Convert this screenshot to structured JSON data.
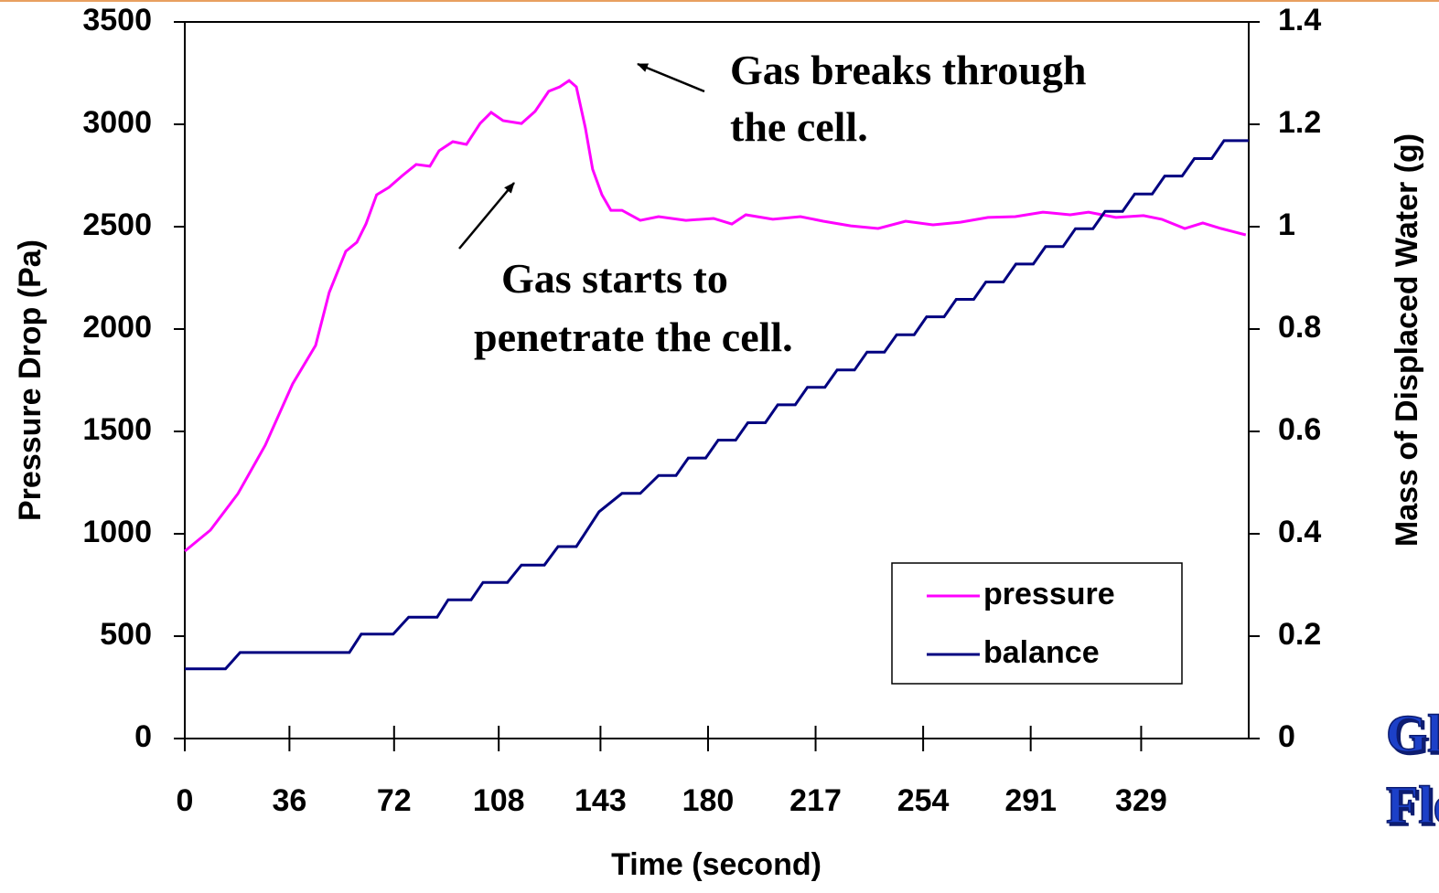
{
  "chart_data": {
    "type": "line",
    "y_label": "Pressure Drop (Pa)",
    "y2_label": "Mass of Displaced Water (g)",
    "x_label": "Time (second)",
    "annotations": [
      "Gas breaks through",
      "the cell.",
      "Gas starts to",
      "penetrate the cell."
    ],
    "corner_text": [
      "Gla",
      "Flo"
    ],
    "xlim": [
      0,
      366
    ],
    "xticks": [
      0,
      36,
      72,
      108,
      143,
      180,
      217,
      254,
      291,
      329
    ],
    "ylim": [
      0,
      3500
    ],
    "yticks": [
      0,
      500,
      1000,
      1500,
      2000,
      2500,
      3000,
      3500
    ],
    "y2lim": [
      0,
      1.4
    ],
    "y2ticks": [
      0,
      0.2,
      0.4,
      0.6,
      0.8,
      1,
      1.2,
      1.4
    ],
    "legend": "lower-right",
    "series": [
      {
        "name": "pressure",
        "color": "#ff00ff",
        "axis": "y",
        "x": [
          0,
          8.8,
          18.3,
          27.7,
          37.1,
          45,
          49.7,
          55.4,
          59.2,
          62.3,
          66,
          70.2,
          74.9,
          79.6,
          84.3,
          87.5,
          92.2,
          96.9,
          101.6,
          105.4,
          109.5,
          115.8,
          120.5,
          125.2,
          129,
          132.2,
          134.7,
          137.8,
          140.3,
          143.5,
          146.6,
          150.4,
          156.7,
          163,
          172.4,
          181.9,
          188.2,
          193,
          202.3,
          211.8,
          219.6,
          229.1,
          238.5,
          248,
          257.4,
          266.8,
          276.3,
          285.7,
          295.2,
          304.6,
          310.9,
          320.3,
          329.8,
          336.1,
          344,
          350.2,
          356.5,
          365
        ],
        "values": [
          915,
          1018,
          1196,
          1433,
          1732,
          1920,
          2179,
          2380,
          2424,
          2513,
          2656,
          2692,
          2750,
          2804,
          2795,
          2871,
          2915,
          2902,
          3004,
          3058,
          3018,
          3004,
          3063,
          3161,
          3183,
          3214,
          3183,
          2982,
          2781,
          2656,
          2580,
          2580,
          2531,
          2549,
          2531,
          2540,
          2513,
          2558,
          2536,
          2549,
          2527,
          2504,
          2491,
          2527,
          2509,
          2522,
          2545,
          2549,
          2571,
          2558,
          2571,
          2545,
          2554,
          2536,
          2491,
          2518,
          2491,
          2460
        ]
      },
      {
        "name": "balance",
        "color": "#000080",
        "axis": "y2",
        "x": [
          0,
          14,
          19,
          56.6,
          60.7,
          71.7,
          77,
          86.8,
          90.6,
          98.5,
          102.6,
          111,
          115.8,
          123.7,
          128.4,
          134.7,
          142.5,
          150.4,
          156.7,
          163,
          169,
          173.2,
          179.2,
          183.5,
          189.5,
          193.7,
          199.7,
          204,
          210,
          214.2,
          220.2,
          224.4,
          230.4,
          234.7,
          240.7,
          244.9,
          250.9,
          255.2,
          261.2,
          265.4,
          271.4,
          275.6,
          281.6,
          285.9,
          291.9,
          296.1,
          302.1,
          306.4,
          312.4,
          316.6,
          322.6,
          326.8,
          332.8,
          337.1,
          343.1,
          347.3,
          353.3,
          357.5,
          366
        ],
        "values": [
          0.136,
          0.136,
          0.168,
          0.168,
          0.204,
          0.204,
          0.237,
          0.237,
          0.271,
          0.271,
          0.305,
          0.305,
          0.339,
          0.339,
          0.375,
          0.375,
          0.443,
          0.479,
          0.479,
          0.514,
          0.514,
          0.548,
          0.548,
          0.583,
          0.583,
          0.617,
          0.617,
          0.652,
          0.652,
          0.686,
          0.686,
          0.72,
          0.72,
          0.755,
          0.755,
          0.789,
          0.789,
          0.824,
          0.824,
          0.858,
          0.858,
          0.892,
          0.892,
          0.927,
          0.927,
          0.961,
          0.961,
          0.996,
          0.996,
          1.03,
          1.03,
          1.064,
          1.064,
          1.099,
          1.099,
          1.133,
          1.133,
          1.168,
          1.168
        ]
      }
    ]
  }
}
